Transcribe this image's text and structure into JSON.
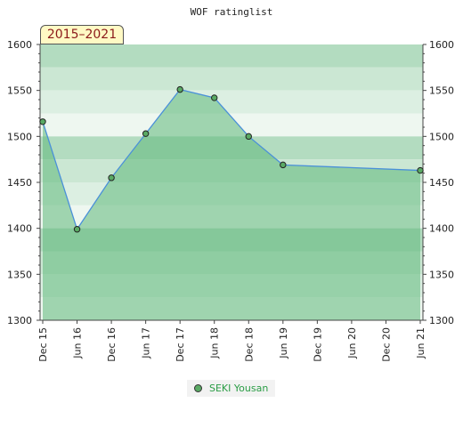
{
  "chart_data": {
    "type": "line",
    "title": "WOF ratinglist",
    "period_label": "2015–2021",
    "categories": [
      "Dec 15",
      "Jun 16",
      "Dec 16",
      "Jun 17",
      "Dec 17",
      "Jun 18",
      "Dec 18",
      "Jun 19",
      "Dec 19",
      "Jun 20",
      "Dec 20",
      "Jun 21"
    ],
    "series": [
      {
        "name": "SEKI Yousan",
        "points": [
          {
            "x": 0,
            "y": 1516
          },
          {
            "x": 1,
            "y": 1399
          },
          {
            "x": 2,
            "y": 1455
          },
          {
            "x": 3,
            "y": 1503
          },
          {
            "x": 4,
            "y": 1551
          },
          {
            "x": 5,
            "y": 1542
          },
          {
            "x": 6,
            "y": 1500
          },
          {
            "x": 7,
            "y": 1469
          },
          {
            "x": 11,
            "y": 1463
          }
        ]
      }
    ],
    "ylim": [
      1300,
      1600
    ],
    "yticks": [
      1300,
      1350,
      1400,
      1450,
      1500,
      1550,
      1600
    ],
    "legend_position": "bottom-center",
    "grid": false,
    "colors": {
      "line": "#4a90d9",
      "fill": "#5fb87a",
      "marker": "#5aaa64",
      "legend_text": "#2a9d45"
    }
  }
}
